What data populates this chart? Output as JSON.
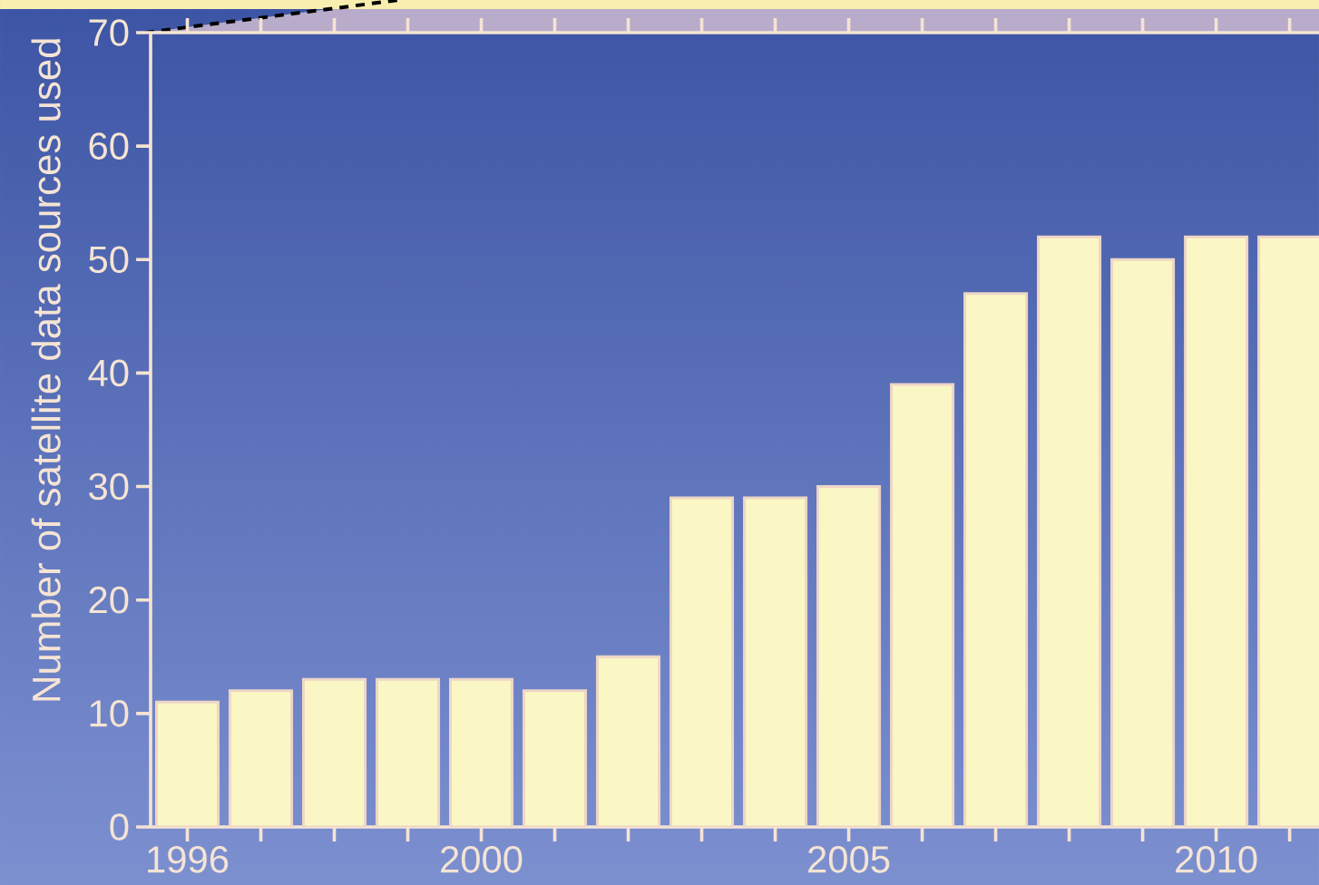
{
  "chart_data": {
    "type": "bar",
    "ylabel": "Number of satellite data sources used",
    "x": [
      1996,
      1997,
      1998,
      1999,
      2000,
      2001,
      2002,
      2003,
      2004,
      2005,
      2006,
      2007,
      2008,
      2009,
      2010,
      2011
    ],
    "values": [
      11,
      12,
      13,
      13,
      13,
      12,
      15,
      29,
      29,
      30,
      39,
      47,
      52,
      50,
      52,
      52
    ],
    "color": "#faf7c4",
    "xlim": [
      1995.5,
      2011.4
    ],
    "xticks": [
      1996,
      {
        "value": 1997,
        "label": null
      },
      {
        "value": 1998,
        "label": null
      },
      {
        "value": 1999,
        "label": null
      },
      2000,
      {
        "value": 2001,
        "label": null
      },
      {
        "value": 2002,
        "label": null
      },
      {
        "value": 2003,
        "label": null
      },
      {
        "value": 2004,
        "label": null
      },
      2005,
      {
        "value": 2006,
        "label": null
      },
      {
        "value": 2007,
        "label": null
      },
      {
        "value": 2008,
        "label": null
      },
      {
        "value": 2009,
        "label": null
      },
      2010,
      {
        "value": 2011,
        "label": null
      }
    ],
    "ylim": [
      0,
      70
    ],
    "yticks": [
      0,
      10,
      20,
      30,
      40,
      50,
      60,
      70
    ]
  }
}
